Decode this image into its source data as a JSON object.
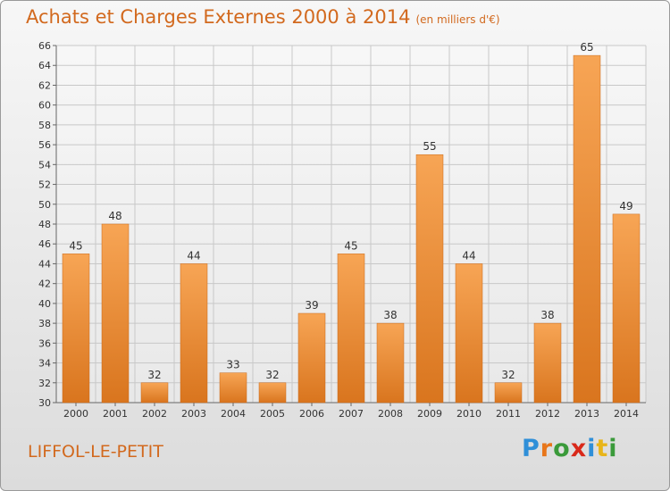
{
  "header": {
    "title": "Achats et Charges Externes 2000 à 2014",
    "subtitle": "(en milliers d'€)"
  },
  "footer": {
    "location": "LIFFOL-LE-PETIT",
    "brand": "Proxiti",
    "brand_colors": [
      "#2f8fd8",
      "#e8761a",
      "#3a9a3a",
      "#d9291a",
      "#2f8fd8",
      "#e8b51a",
      "#3a9a3a"
    ]
  },
  "chart_data": {
    "type": "bar",
    "categories": [
      "2000",
      "2001",
      "2002",
      "2003",
      "2004",
      "2005",
      "2006",
      "2007",
      "2008",
      "2009",
      "2010",
      "2011",
      "2012",
      "2013",
      "2014"
    ],
    "values": [
      45,
      48,
      32,
      44,
      33,
      32,
      39,
      45,
      38,
      55,
      44,
      32,
      38,
      65,
      49
    ],
    "ylim": [
      30,
      66
    ],
    "yticks": [
      30,
      32,
      34,
      36,
      38,
      40,
      42,
      44,
      46,
      48,
      50,
      52,
      54,
      56,
      58,
      60,
      62,
      64,
      66
    ],
    "grid": true,
    "bar_color": "#f0903a",
    "data_labels": true
  }
}
